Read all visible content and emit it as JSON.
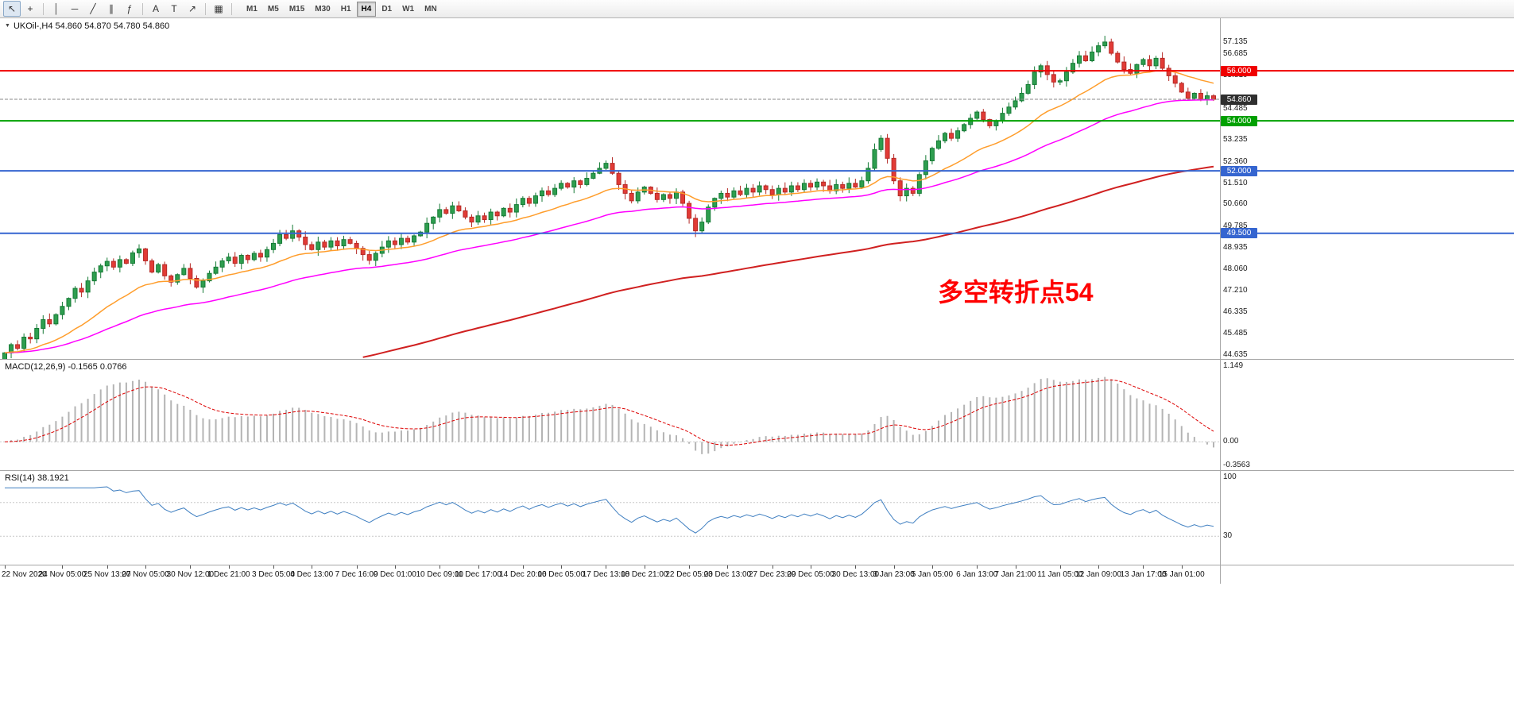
{
  "toolbar": {
    "tools": [
      {
        "name": "pointer",
        "glyph": "↖",
        "active": true
      },
      {
        "name": "crosshair",
        "glyph": "+"
      },
      {
        "type": "sep"
      },
      {
        "name": "vertical-line",
        "glyph": "│"
      },
      {
        "name": "horizontal-line",
        "glyph": "─"
      },
      {
        "name": "trendline",
        "glyph": "╱"
      },
      {
        "name": "equidistant-channel",
        "glyph": "∥"
      },
      {
        "name": "fibonacci-retracement",
        "glyph": "ƒ"
      },
      {
        "type": "sep"
      },
      {
        "name": "text",
        "glyph": "A"
      },
      {
        "name": "text-label",
        "glyph": "T"
      },
      {
        "name": "arrow-objects",
        "glyph": "↗"
      },
      {
        "type": "sep"
      },
      {
        "name": "indicators",
        "glyph": "▦"
      },
      {
        "type": "sep"
      }
    ],
    "timeframes": [
      "M1",
      "M5",
      "M15",
      "M30",
      "H1",
      "H4",
      "D1",
      "W1",
      "MN"
    ],
    "active_timeframe": "H4"
  },
  "chart": {
    "collapse_icon": "▼",
    "symbol_header": "UKOil-,H4 54.860 54.870 54.780 54.860",
    "annotation": {
      "text": "多空转折点54",
      "color": "#ff0000"
    },
    "price_axis_ticks": [
      {
        "label": "57.135",
        "price": 57.135
      },
      {
        "label": "56.685",
        "price": 56.685
      },
      {
        "label": "55.810",
        "price": 55.81
      },
      {
        "label": "54.485",
        "price": 54.485
      },
      {
        "label": "53.235",
        "price": 53.235
      },
      {
        "label": "52.360",
        "price": 52.36
      },
      {
        "label": "51.510",
        "price": 51.51
      },
      {
        "label": "50.660",
        "price": 50.66
      },
      {
        "label": "49.785",
        "price": 49.785
      },
      {
        "label": "48.935",
        "price": 48.935
      },
      {
        "label": "48.060",
        "price": 48.06
      },
      {
        "label": "47.210",
        "price": 47.21
      },
      {
        "label": "46.335",
        "price": 46.335
      },
      {
        "label": "45.485",
        "price": 45.485
      },
      {
        "label": "44.635",
        "price": 44.635
      }
    ]
  },
  "macd_panel": {
    "label": "MACD(12,26,9) -0.1565 0.0766",
    "axis": [
      {
        "label": "1.149",
        "value": 1.149
      },
      {
        "label": "0.00",
        "value": 0
      },
      {
        "label": "-0.3563",
        "value": -0.3563
      }
    ]
  },
  "rsi_panel": {
    "label": "RSI(14) 38.1921",
    "axis": [
      {
        "label": "100",
        "value": 100
      },
      {
        "label": "30",
        "value": 30
      }
    ],
    "levels": [
      70,
      30
    ]
  },
  "time_axis": [
    {
      "label": "22 Nov 2020",
      "i": 0
    },
    {
      "label": "24 Nov 05:00",
      "i": 9
    },
    {
      "label": "25 Nov 13:00",
      "i": 16
    },
    {
      "label": "27 Nov 05:00",
      "i": 22
    },
    {
      "label": "30 Nov 12:00",
      "i": 29
    },
    {
      "label": "1 Dec 21:00",
      "i": 35
    },
    {
      "label": "3 Dec 05:00",
      "i": 42
    },
    {
      "label": "4 Dec 13:00",
      "i": 48
    },
    {
      "label": "7 Dec 16:00",
      "i": 55
    },
    {
      "label": "9 Dec 01:00",
      "i": 61
    },
    {
      "label": "10 Dec 09:00",
      "i": 68
    },
    {
      "label": "11 Dec 17:00",
      "i": 74
    },
    {
      "label": "14 Dec 20:00",
      "i": 81
    },
    {
      "label": "16 Dec 05:00",
      "i": 87
    },
    {
      "label": "17 Dec 13:00",
      "i": 94
    },
    {
      "label": "18 Dec 21:00",
      "i": 100
    },
    {
      "label": "22 Dec 05:00",
      "i": 107
    },
    {
      "label": "23 Dec 13:00",
      "i": 113
    },
    {
      "label": "27 Dec 23:00",
      "i": 120
    },
    {
      "label": "29 Dec 05:00",
      "i": 126
    },
    {
      "label": "30 Dec 13:00",
      "i": 133
    },
    {
      "label": "3 Jan 23:00",
      "i": 139
    },
    {
      "label": "5 Jan 05:00",
      "i": 145
    },
    {
      "label": "6 Jan 13:00",
      "i": 152
    },
    {
      "label": "7 Jan 21:00",
      "i": 158
    },
    {
      "label": "11 Jan 05:00",
      "i": 165
    },
    {
      "label": "12 Jan 09:00",
      "i": 171
    },
    {
      "label": "13 Jan 17:00",
      "i": 178
    },
    {
      "label": "15 Jan 01:00",
      "i": 184
    }
  ],
  "chart_data": {
    "type": "candlestick",
    "symbol": "UKOil-",
    "timeframe": "H4",
    "current_bar": {
      "open": 54.86,
      "high": 54.87,
      "low": 54.78,
      "close": 54.86
    },
    "last_price": {
      "label": "54.860",
      "value": 54.86,
      "color": "#2f2f2f"
    },
    "price_range": [
      44.54,
      57.56
    ],
    "bull_color": "#2e9e4f",
    "bear_color": "#e23b36",
    "bull_stroke": "#157a35",
    "bear_stroke": "#b52a26",
    "closes": [
      44.72,
      45.05,
      44.9,
      45.35,
      45.28,
      45.7,
      46.05,
      45.88,
      46.25,
      46.58,
      46.9,
      47.3,
      47.15,
      47.6,
      47.95,
      48.2,
      48.38,
      48.15,
      48.45,
      48.3,
      48.72,
      48.88,
      48.4,
      47.95,
      48.25,
      47.8,
      47.55,
      47.85,
      48.1,
      47.7,
      47.35,
      47.6,
      47.9,
      48.15,
      48.4,
      48.55,
      48.3,
      48.62,
      48.45,
      48.7,
      48.55,
      48.85,
      49.1,
      49.45,
      49.3,
      49.6,
      49.35,
      49.05,
      48.85,
      49.15,
      48.95,
      49.2,
      49.0,
      49.25,
      49.1,
      48.9,
      48.65,
      48.42,
      48.7,
      48.95,
      49.2,
      49.05,
      49.3,
      49.15,
      49.4,
      49.55,
      49.9,
      50.15,
      50.45,
      50.3,
      50.6,
      50.4,
      50.15,
      49.95,
      50.2,
      50.05,
      50.35,
      50.2,
      50.5,
      50.35,
      50.65,
      50.9,
      50.7,
      51.0,
      51.2,
      51.05,
      51.3,
      51.5,
      51.35,
      51.6,
      51.45,
      51.7,
      51.9,
      52.1,
      52.3,
      51.9,
      51.45,
      51.1,
      50.8,
      51.15,
      51.35,
      51.1,
      50.85,
      51.05,
      50.9,
      51.15,
      50.7,
      50.1,
      49.6,
      49.95,
      50.55,
      50.9,
      51.1,
      50.95,
      51.2,
      51.05,
      51.3,
      51.15,
      51.4,
      51.25,
      51.05,
      51.3,
      51.15,
      51.4,
      51.25,
      51.5,
      51.35,
      51.55,
      51.4,
      51.2,
      51.45,
      51.3,
      51.5,
      51.35,
      51.6,
      52.1,
      52.85,
      53.3,
      52.5,
      51.6,
      51.0,
      51.3,
      51.1,
      51.85,
      52.4,
      52.9,
      53.2,
      53.5,
      53.3,
      53.6,
      53.85,
      54.1,
      54.35,
      54.05,
      53.8,
      54.0,
      54.3,
      54.55,
      54.8,
      55.1,
      55.45,
      55.95,
      56.2,
      55.85,
      55.55,
      55.6,
      55.95,
      56.3,
      56.6,
      56.4,
      56.75,
      57.0,
      57.15,
      56.7,
      56.35,
      56.05,
      55.9,
      56.25,
      56.45,
      56.2,
      56.5,
      56.1,
      55.8,
      55.5,
      55.15,
      54.9,
      55.1,
      54.85,
      55.0,
      54.86
    ],
    "horizontal_lines": [
      {
        "label": "56.000",
        "price": 56.0,
        "color": "#f00000"
      },
      {
        "label": "54.000",
        "price": 54.0,
        "color": "#00a000"
      },
      {
        "label": "52.000",
        "price": 52.0,
        "color": "#3565d0"
      },
      {
        "label": "49.500",
        "price": 49.5,
        "color": "#3565d0"
      }
    ],
    "moving_averages": [
      {
        "name": "fast",
        "color": "#ff9d2b",
        "period": 20
      },
      {
        "name": "medium",
        "color": "#ff00ff",
        "period": 50
      },
      {
        "name": "slow",
        "color": "#d02020",
        "period": 140,
        "seed": 40.0
      }
    ],
    "indicators": {
      "macd": {
        "fast": 12,
        "slow": 26,
        "signal": 9,
        "value": -0.1565,
        "signal_value": 0.0766,
        "range": [
          -0.3563,
          1.149
        ],
        "histogram_color": "#b4b4b4",
        "signal_color": "#dd0000"
      },
      "rsi": {
        "period": 14,
        "value": 38.1921,
        "range": [
          0,
          100
        ],
        "color": "#3f7fc1"
      }
    }
  }
}
